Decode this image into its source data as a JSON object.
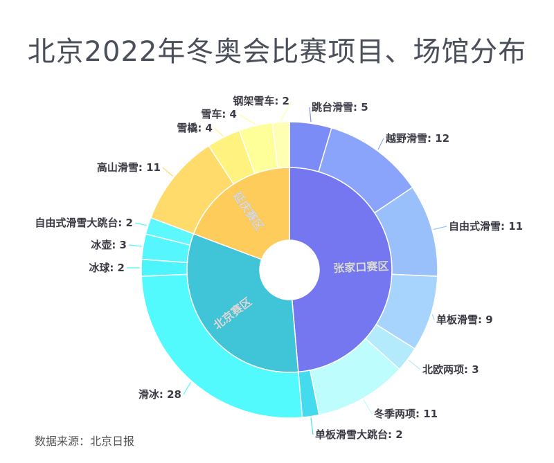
{
  "chart_data": {
    "type": "sunburst",
    "title": "北京2022年冬奥会比赛项目、场馆分布",
    "source": "数据来源：北京日报",
    "series": [
      {
        "name": "张家口赛区",
        "color": "#7477f0",
        "children": [
          {
            "name": "跳台滑雪",
            "value": 5,
            "color": "#7b8cf7"
          },
          {
            "name": "越野滑雪",
            "value": 12,
            "color": "#8aa4fb"
          },
          {
            "name": "自由式滑雪",
            "value": 11,
            "color": "#99c0fb"
          },
          {
            "name": "单板滑雪",
            "value": 9,
            "color": "#a6d4fc"
          },
          {
            "name": "北欧两项",
            "value": 3,
            "color": "#b3ebfc"
          },
          {
            "name": "冬季两项",
            "value": 11,
            "color": "#bdfdfd"
          },
          {
            "name": "单板滑雪大跳台",
            "value": 2,
            "color": "#45dbef"
          }
        ]
      },
      {
        "name": "北京赛区",
        "color": "#40c4d8",
        "children": [
          {
            "name": "滑冰",
            "value": 28,
            "color": "#52f9fd"
          },
          {
            "name": "冰球",
            "value": 2,
            "color": "#4ef4fc"
          },
          {
            "name": "冰壶",
            "value": 3,
            "color": "#55f6fd"
          },
          {
            "name": "自由式滑雪大跳台",
            "value": 2,
            "color": "#5cf8fd"
          }
        ]
      },
      {
        "name": "延庆赛区",
        "color": "#fecc5a",
        "children": [
          {
            "name": "高山滑雪",
            "value": 11,
            "color": "#fedb6b"
          },
          {
            "name": "雪橇",
            "value": 4,
            "color": "#fff27f"
          },
          {
            "name": "雪车",
            "value": 4,
            "color": "#ffff9a"
          },
          {
            "name": "钢架雪车",
            "value": 2,
            "color": "#ffffb3"
          }
        ]
      }
    ]
  }
}
